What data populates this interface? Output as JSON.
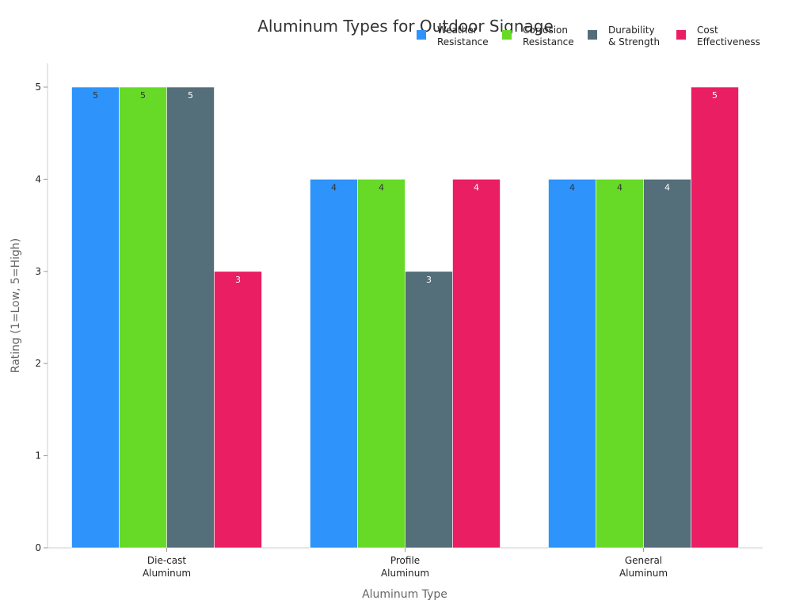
{
  "chart_data": {
    "type": "bar",
    "title": "Aluminum Types for Outdoor Signage",
    "xlabel": "Aluminum Type",
    "ylabel": "Rating (1=Low, 5=High)",
    "ylim": [
      0,
      5
    ],
    "yticks": [
      0,
      1,
      2,
      3,
      4,
      5
    ],
    "grid": false,
    "legend_position": "top-right",
    "categories": [
      [
        "Die-cast",
        "Aluminum"
      ],
      [
        "Profile",
        "Aluminum"
      ],
      [
        "General",
        "Aluminum"
      ]
    ],
    "series": [
      {
        "name": [
          "Weather",
          "Resistance"
        ],
        "color": "#2E93FA",
        "label_color": "#333333",
        "values": [
          5,
          4,
          4
        ]
      },
      {
        "name": [
          "Corrosion",
          "Resistance"
        ],
        "color": "#66DA26",
        "label_color": "#333333",
        "values": [
          5,
          4,
          4
        ]
      },
      {
        "name": [
          "Durability",
          "& Strength"
        ],
        "color": "#546E7A",
        "label_color": "#ffffff",
        "values": [
          5,
          3,
          4
        ]
      },
      {
        "name": [
          "Cost",
          "Effectiveness"
        ],
        "color": "#E91E63",
        "label_color": "#ffffff",
        "values": [
          3,
          4,
          5
        ]
      }
    ]
  }
}
